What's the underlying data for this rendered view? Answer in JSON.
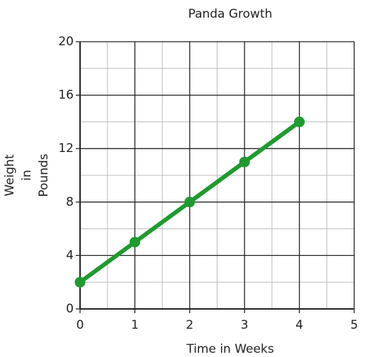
{
  "chart_data": {
    "type": "line",
    "title": "Panda Growth",
    "x_label": "Time in Weeks",
    "y_label": [
      "Weight",
      "in",
      "Pounds"
    ],
    "x": [
      0,
      1,
      2,
      3,
      4
    ],
    "series": [
      {
        "values": [
          2,
          5,
          8,
          11,
          14
        ],
        "color": "#1e9b2e"
      }
    ],
    "xlim": [
      0,
      5
    ],
    "xticks": [
      0,
      1,
      2,
      3,
      4,
      5
    ],
    "ylim": [
      0,
      20
    ],
    "yticks": [
      0,
      4,
      8,
      12,
      16,
      20
    ],
    "grid": true,
    "minor_grid": true
  }
}
